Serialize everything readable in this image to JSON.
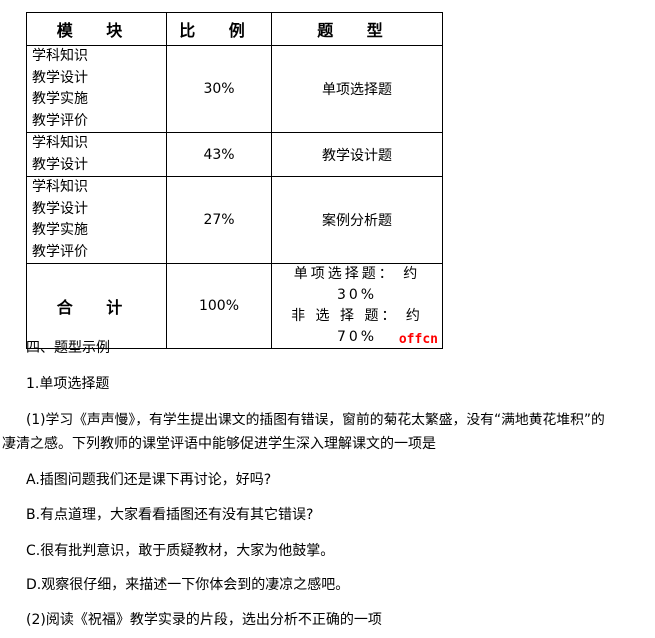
{
  "table": {
    "headers": [
      "模 块",
      "比 例",
      "题 型"
    ],
    "rows": [
      {
        "modules": [
          "学科知识",
          "教学设计",
          "教学实施",
          "教学评价"
        ],
        "ratio": "30%",
        "type": "单项选择题"
      },
      {
        "modules": [
          "学科知识",
          "教学设计"
        ],
        "ratio": "43%",
        "type": "教学设计题"
      },
      {
        "modules": [
          "学科知识",
          "教学设计",
          "教学实施",
          "教学评价"
        ],
        "ratio": "27%",
        "type": "案例分析题"
      }
    ],
    "total": {
      "label": "合 计",
      "ratio": "100%",
      "lines": [
        "单项选择题： 约 30%",
        "非 选 择 题： 约 70%"
      ]
    },
    "watermark": "offcn"
  },
  "text": {
    "section": "四、题型示例",
    "sub": "1.单项选择题",
    "q1_line1": "(1)学习《声声慢》，有学生提出课文的插图有错误，窗前的菊花太繁盛，没有“满地黄花堆积”的",
    "q1_line2": "凄清之感。下列教师的课堂评语中能够促进学生深入理解课文的一项是",
    "a": "A.插图问题我们还是课下再讨论，好吗?",
    "b": "B.有点道理，大家看看插图还有没有其它错误?",
    "c": "C.很有批判意识，敢于质疑教材，大家为他鼓掌。",
    "d": "D.观察很仔细，来描述一下你体会到的凄凉之感吧。",
    "q2": "(2)阅读《祝福》教学实录的片段，选出分析不正确的一项"
  }
}
